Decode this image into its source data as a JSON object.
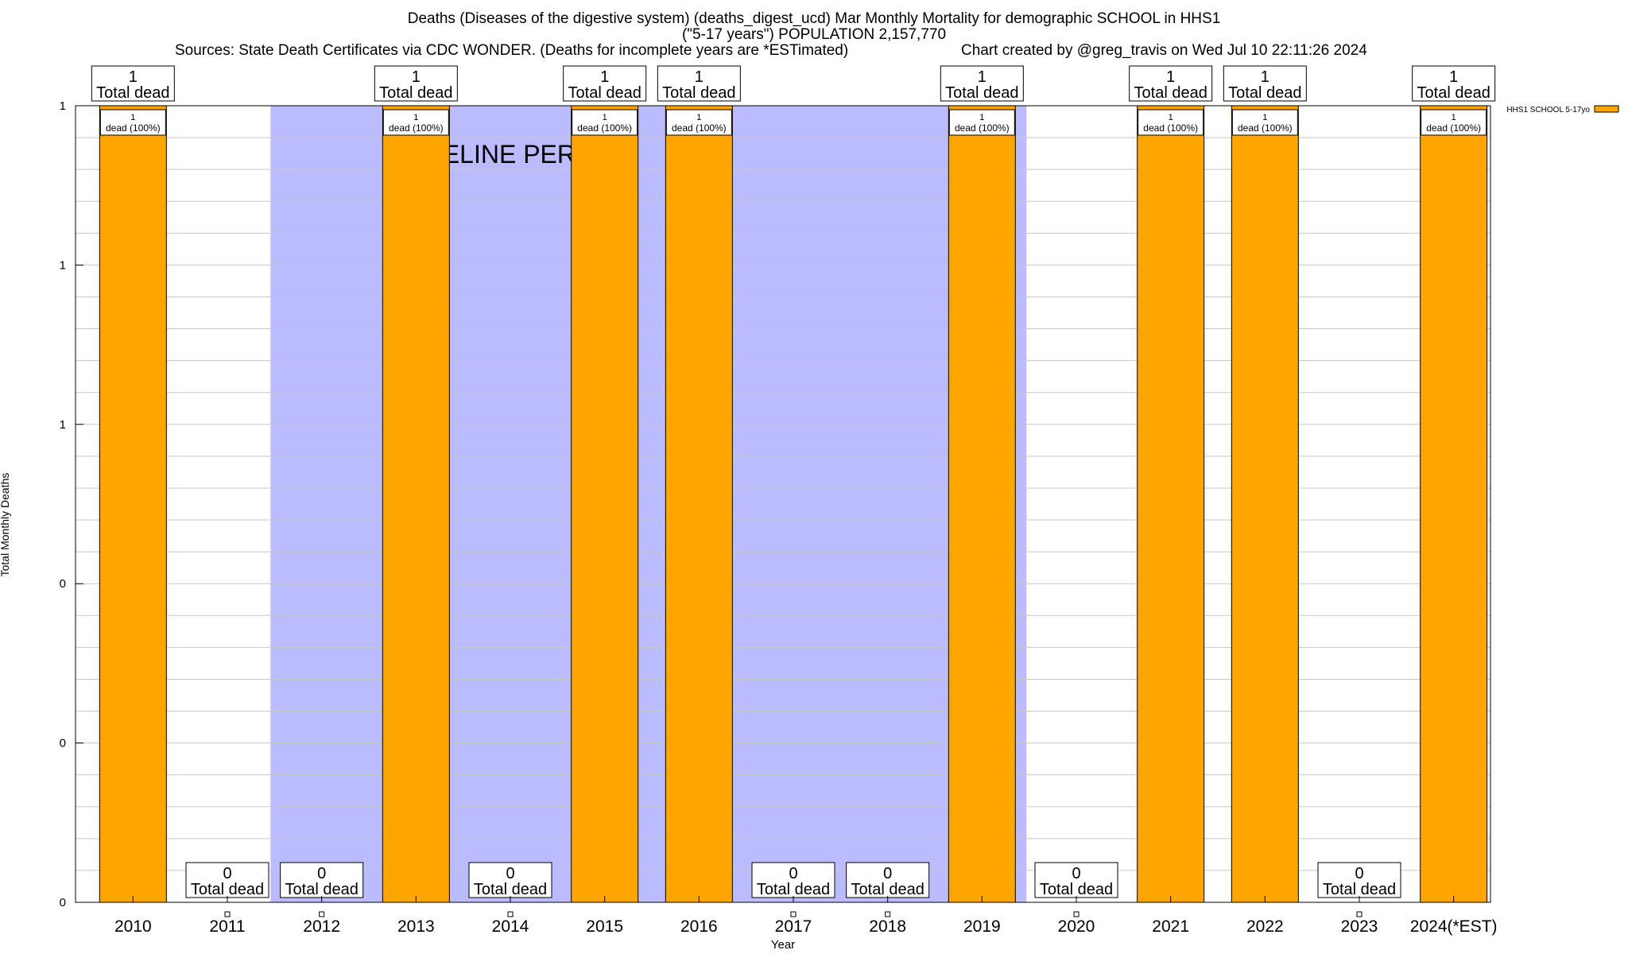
{
  "header": {
    "title_line1": "Deaths (Diseases of the digestive system) (deaths_digest_ucd) Mar Monthly Mortality for demographic SCHOOL in HHS1",
    "title_line2": "(\"5-17 years\") POPULATION 2,157,770",
    "sources": "Sources: State Death Certificates via CDC WONDER. (Deaths for incomplete years are *ESTimated)",
    "credit": "Chart created by @greg_travis on Wed Jul 10 22:11:26 2024"
  },
  "chart_data": {
    "type": "bar",
    "xlabel": "Year",
    "ylabel": "Total Monthly Deaths",
    "categories": [
      "2010",
      "2011",
      "2012",
      "2013",
      "2014",
      "2015",
      "2016",
      "2017",
      "2018",
      "2019",
      "2020",
      "2021",
      "2022",
      "2023",
      "2024(*EST)"
    ],
    "series": [
      {
        "name": "HHS1 SCHOOL 5-17yo",
        "values": [
          1,
          0,
          0,
          1,
          0,
          1,
          1,
          0,
          0,
          1,
          0,
          1,
          1,
          0,
          1
        ],
        "color": "#ffa500"
      }
    ],
    "ylim": [
      0,
      1
    ],
    "y_tick_labels": [
      "0",
      "0",
      "0",
      "1",
      "1",
      "1"
    ],
    "bar_labels": {
      "total_value": [
        "1",
        "0",
        "0",
        "1",
        "0",
        "1",
        "1",
        "0",
        "0",
        "1",
        "0",
        "1",
        "1",
        "0",
        "1"
      ],
      "total_caption": "Total dead",
      "inner_value": "1",
      "inner_caption": "dead (100%)"
    },
    "baseline_period": {
      "label": "BASELINE PERIOD",
      "start_year": "2012",
      "end_year": "2019",
      "color": "#bbbbff"
    },
    "legend": {
      "position": "top-right",
      "label": "HHS1 SCHOOL 5-17yo"
    },
    "grid": true
  }
}
